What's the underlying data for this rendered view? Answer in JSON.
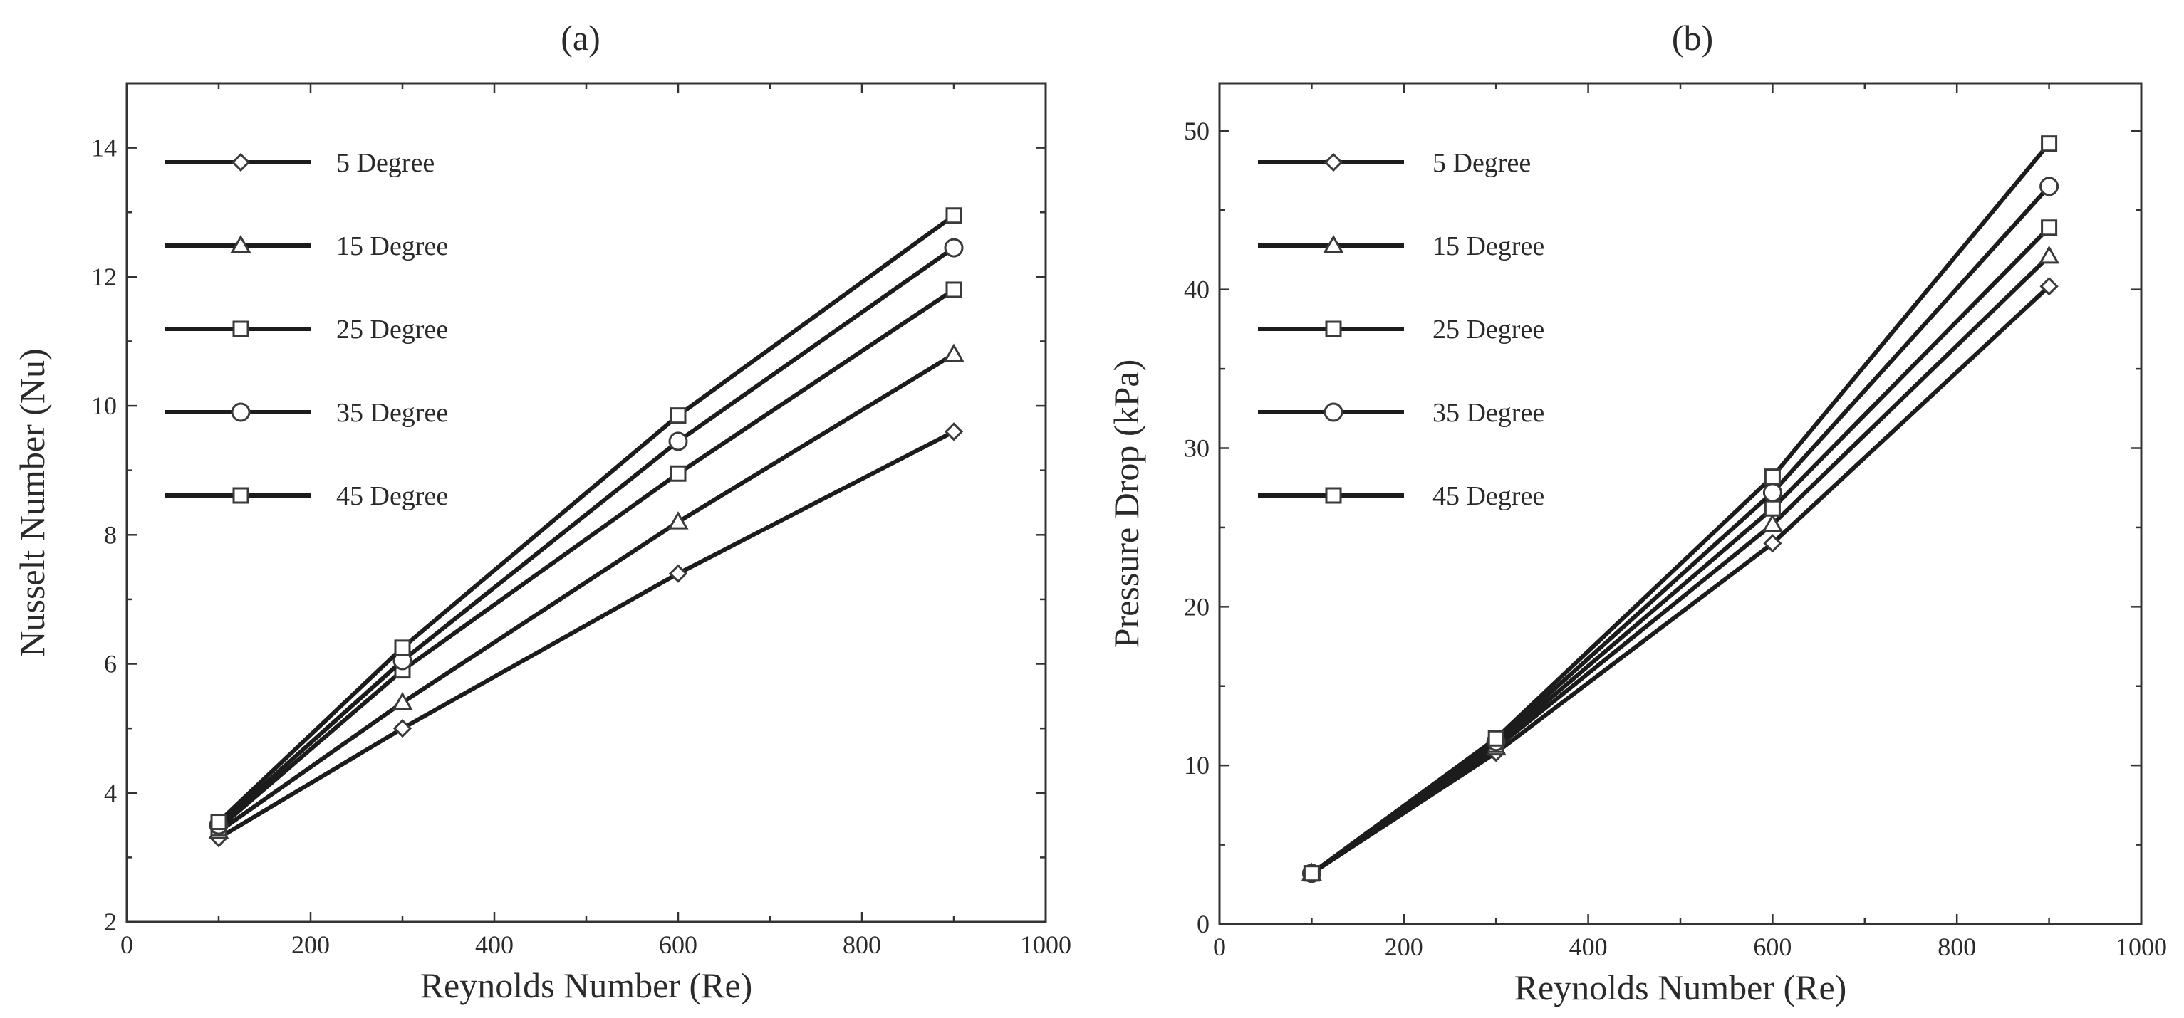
{
  "chart_data": [
    {
      "type": "line",
      "panel_label": "(a)",
      "title": "",
      "xlabel": "Reynolds Number (Re)",
      "ylabel": "Nusselt Number (Nu)",
      "xlim": [
        0,
        1000
      ],
      "ylim": [
        2,
        15
      ],
      "xticks": [
        0,
        200,
        400,
        600,
        800,
        1000
      ],
      "yticks": [
        2,
        4,
        6,
        8,
        10,
        12,
        14
      ],
      "grid": false,
      "legend_position": "top-left",
      "x": [
        100,
        300,
        600,
        900
      ],
      "series": [
        {
          "name": "5 Degree",
          "marker": "diamond",
          "values": [
            3.3,
            5.0,
            7.4,
            9.6
          ]
        },
        {
          "name": "15 Degree",
          "marker": "triangle",
          "values": [
            3.4,
            5.4,
            8.2,
            10.8
          ]
        },
        {
          "name": "25 Degree",
          "marker": "square",
          "values": [
            3.45,
            5.9,
            8.95,
            11.8
          ]
        },
        {
          "name": "35 Degree",
          "marker": "circle",
          "values": [
            3.5,
            6.05,
            9.45,
            12.45
          ]
        },
        {
          "name": "45 Degree",
          "marker": "square",
          "values": [
            3.55,
            6.25,
            9.85,
            12.95
          ]
        }
      ]
    },
    {
      "type": "line",
      "panel_label": "(b)",
      "title": "",
      "xlabel": "Reynolds Number (Re)",
      "ylabel": "Pressure Drop (kPa)",
      "xlim": [
        0,
        1000
      ],
      "ylim": [
        0,
        53
      ],
      "xticks": [
        0,
        200,
        400,
        600,
        800,
        1000
      ],
      "yticks": [
        0,
        10,
        20,
        30,
        40,
        50
      ],
      "grid": false,
      "legend_position": "top-left",
      "x": [
        100,
        300,
        600,
        900
      ],
      "series": [
        {
          "name": "5 Degree",
          "marker": "diamond",
          "values": [
            3.2,
            10.8,
            24.0,
            40.2
          ]
        },
        {
          "name": "15 Degree",
          "marker": "triangle",
          "values": [
            3.2,
            11.1,
            25.2,
            42.1
          ]
        },
        {
          "name": "25 Degree",
          "marker": "square",
          "values": [
            3.2,
            11.3,
            26.2,
            43.9
          ]
        },
        {
          "name": "35 Degree",
          "marker": "circle",
          "values": [
            3.2,
            11.5,
            27.2,
            46.5
          ]
        },
        {
          "name": "45 Degree",
          "marker": "square",
          "values": [
            3.2,
            11.7,
            28.2,
            49.2
          ]
        }
      ]
    }
  ]
}
